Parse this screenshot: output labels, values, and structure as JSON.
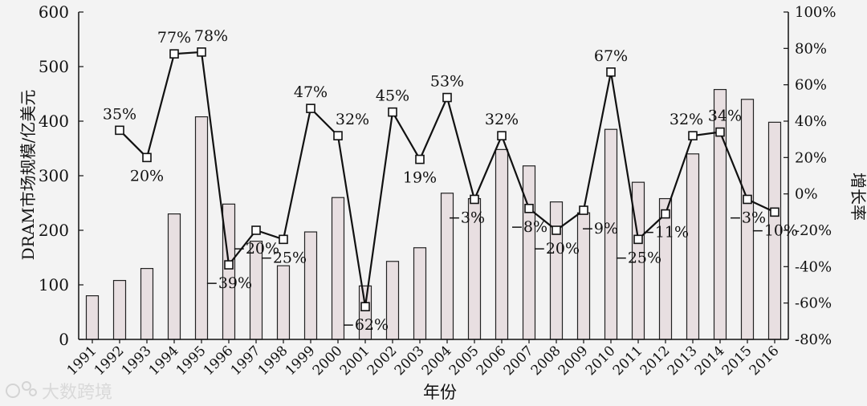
{
  "chart_data": {
    "type": "bar",
    "title": "",
    "xlabel": "年份",
    "ylabel": "DRAM市场规模/亿美元",
    "y2label": "增长率",
    "categories": [
      "1991",
      "1992",
      "1993",
      "1994",
      "1995",
      "1996",
      "1997",
      "1998",
      "1999",
      "2000",
      "2001",
      "2002",
      "2003",
      "2004",
      "2005",
      "2006",
      "2007",
      "2008",
      "2009",
      "2010",
      "2011",
      "2012",
      "2013",
      "2014",
      "2015",
      "2016"
    ],
    "ylim": [
      0,
      600
    ],
    "yticks": [
      "0",
      "100",
      "200",
      "300",
      "400",
      "500",
      "600"
    ],
    "y2lim": [
      -80,
      100
    ],
    "y2ticks": [
      "-80%",
      "-60%",
      "-40%",
      "-20%",
      "0%",
      "20%",
      "40%",
      "60%",
      "80%",
      "100%"
    ],
    "grid": false,
    "series": [
      {
        "type": "bar",
        "values": [
          80,
          108,
          130,
          230,
          408,
          248,
          180,
          135,
          197,
          260,
          98,
          143,
          168,
          268,
          258,
          348,
          318,
          252,
          232,
          385,
          288,
          258,
          340,
          458,
          440,
          398
        ],
        "color": "#e8dfe1"
      },
      {
        "type": "line",
        "axis": "right",
        "values": [
          null,
          35,
          20,
          77,
          78,
          -39,
          -20,
          -25,
          47,
          32,
          -62,
          45,
          19,
          53,
          -3,
          32,
          -8,
          -20,
          -9,
          67,
          -25,
          -11,
          32,
          34,
          -3,
          -10
        ],
        "labels": [
          null,
          "35%",
          "20%",
          "77%",
          "78%",
          "−39%",
          "−20%",
          "−25%",
          "47%",
          "32%",
          "−62%",
          "45%",
          "19%",
          "53%",
          "−3%",
          "32%",
          "−8%",
          "−20%",
          "−9%",
          "67%",
          "−25%",
          "−11%",
          "32%",
          "34%",
          "−3%",
          "−10%"
        ],
        "color": "#111111"
      }
    ]
  },
  "watermark": "大数跨境"
}
